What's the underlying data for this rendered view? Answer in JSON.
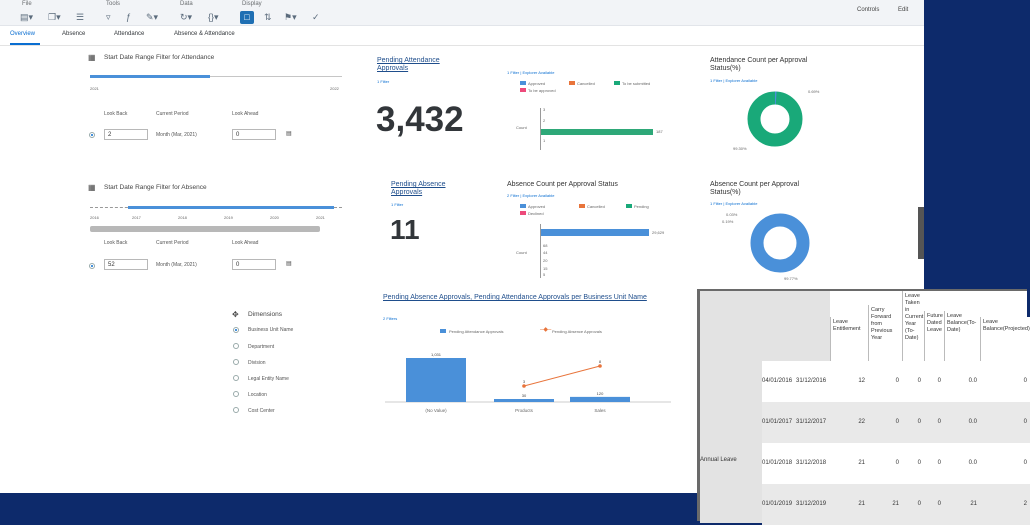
{
  "toolbar": {
    "groups": [
      "File",
      "Tools",
      "Data",
      "Display"
    ],
    "right_links": [
      "Controls",
      "Edit"
    ]
  },
  "tabs": [
    "Overview",
    "Absence",
    "Attendance",
    "Absence & Attendance"
  ],
  "attendance_filter": {
    "title": "Start Date Range Filter for Attendance",
    "start_year": "2021",
    "end_year": "2022",
    "lookback_label": "Look Back",
    "period_label": "Current Period",
    "lookahead_label": "Look Ahead",
    "lookback_value": "2",
    "period_value": "Month (Mar, 2021)",
    "lookahead_value": "0"
  },
  "absence_filter": {
    "title": "Start Date Range Filter for Absence",
    "years": [
      "2016",
      "2017",
      "2018",
      "2019",
      "2020",
      "2021"
    ],
    "lookback_label": "Look Back",
    "period_label": "Current Period",
    "lookahead_label": "Look Ahead",
    "lookback_value": "52",
    "period_value": "Month (Mar, 2021)",
    "lookahead_value": "0"
  },
  "dimensions": {
    "title": "Dimensions",
    "items": [
      "Business Unit Name",
      "Department",
      "Division",
      "Legal Entity Name",
      "Location",
      "Cost Center"
    ]
  },
  "pending_attendance": {
    "title": "Pending Attendance Approvals",
    "filter": "1 Filter",
    "value": "3,432"
  },
  "pending_absence": {
    "title": "Pending Absence Approvals",
    "filter": "1 Filter",
    "value": "11"
  },
  "attendance_count": {
    "filter": "1 Filter | Explorer Available",
    "legend": [
      "Approved",
      "Cancelled",
      "To be submitted",
      "To be approved"
    ],
    "axis_label": "Count",
    "bar_label": "187"
  },
  "absence_count": {
    "title": "Absence Count per Approval Status",
    "filter": "2 Filter | Explorer Available",
    "legend": [
      "Approved",
      "Cancelled",
      "Pending",
      "Declined"
    ],
    "axis_label": "Count",
    "bar_label": "29,629"
  },
  "attendance_pct": {
    "title": "Attendance Count per Approval Status(%)",
    "filter": "1 Filter | Explorer Available",
    "small_label": "0.69%",
    "big_label": "99.30%"
  },
  "absence_pct": {
    "title": "Absence Count per Approval Status(%)",
    "filter": "1 Filter | Explorer Available",
    "small_label_1": "0.03%",
    "small_label_2": "0.19%",
    "big_label": "99.77%"
  },
  "combo": {
    "title": "Pending Absence Approvals, Pending Attendance Approvals per Business Unit Name",
    "filter": "2 Filters",
    "legend_bar": "Pending Attendance Approvals",
    "legend_line": "Pending Absence Approvals"
  },
  "leave_table": {
    "headers": [
      "Leave Entitlement",
      "Carry Forward from Previous Year",
      "Leave Taken in Current Year (To-Date)",
      "Future Dated Leave",
      "Leave Balance(To-Date)",
      "Leave Balance(Projected)"
    ],
    "group_label": "Annual Leave",
    "rows": [
      [
        "04/01/2016",
        "31/12/2016",
        "12",
        "0",
        "0",
        "0",
        "0.0",
        "0"
      ],
      [
        "01/01/2017",
        "31/12/2017",
        "22",
        "0",
        "0",
        "0",
        "0.0",
        "0"
      ],
      [
        "01/01/2018",
        "31/12/2018",
        "21",
        "0",
        "0",
        "0",
        "0.0",
        "0"
      ],
      [
        "01/01/2019",
        "31/12/2019",
        "21",
        "21",
        "0",
        "0",
        "21",
        "2"
      ]
    ]
  },
  "colors": {
    "approved": "#4a90d9",
    "cancelled": "#e8743b",
    "to_submit": "#19a979",
    "to_approve": "#ed4a7b",
    "pending": "#19a979",
    "declined": "#ed4a7b",
    "bar_attendance": "#2ea878",
    "bar_absence": "#4a90d9",
    "line": "#e8743b"
  },
  "chart_data": [
    {
      "type": "bar",
      "title": "Pending Absence Approvals, Pending Attendance Approvals per Business Unit Name",
      "categories": [
        "(No Value)",
        "Products",
        "Sales"
      ],
      "series": [
        {
          "name": "Pending Attendance Approvals",
          "type": "bar",
          "values": [
            1031,
            30,
            120
          ]
        },
        {
          "name": "Pending Absence Approvals",
          "type": "line",
          "values": [
            null,
            3,
            8
          ]
        }
      ],
      "data_labels": [
        "1,031",
        "30",
        "120",
        "3",
        "8"
      ]
    },
    {
      "type": "pie",
      "title": "Attendance Count per Approval Status(%)",
      "slices": [
        {
          "value": 99.3
        },
        {
          "value": 0.69
        }
      ]
    },
    {
      "type": "pie",
      "title": "Absence Count per Approval Status(%)",
      "slices": [
        {
          "value": 99.77
        },
        {
          "value": 0.19
        },
        {
          "value": 0.03
        }
      ]
    }
  ]
}
